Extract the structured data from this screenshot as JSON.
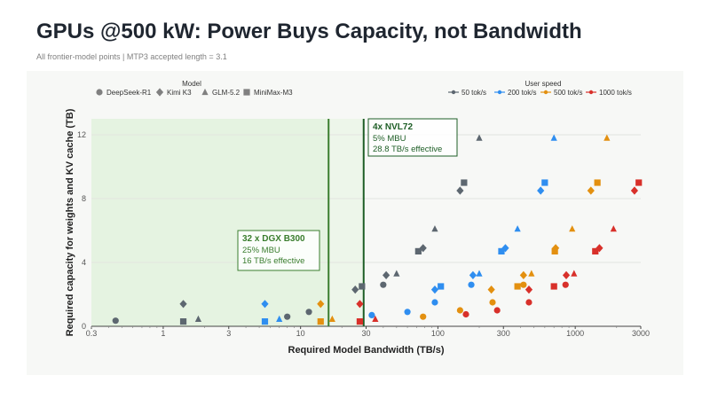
{
  "title": "GPUs @500 kW: Power Buys Capacity, not Bandwidth",
  "subtitle": "All frontier-model points | MTP3 accepted length = 3.1",
  "chart_data": {
    "type": "scatter",
    "x_scale": "log",
    "xlabel": "Required Model Bandwidth (TB/s)",
    "ylabel": "Required capacity for weights and KV cache (TB)",
    "xlim": [
      0.3,
      3000
    ],
    "ylim": [
      0,
      13
    ],
    "x_ticks": [
      0.3,
      1,
      3,
      10,
      30,
      100,
      300,
      1000,
      3000
    ],
    "x_tick_labels": [
      "0.3",
      "1",
      "3",
      "10",
      "30",
      "100",
      "300",
      "1000",
      "3000"
    ],
    "y_ticks": [
      0,
      4,
      8,
      12
    ],
    "y_tick_labels": [
      "0",
      "4",
      "8",
      "12"
    ],
    "grid": true,
    "legend_model_title": "Model",
    "legend_speed_title": "User speed",
    "models": [
      {
        "name": "DeepSeek-R1",
        "marker": "circle"
      },
      {
        "name": "Kimi K3",
        "marker": "diamond"
      },
      {
        "name": "GLM-5.2",
        "marker": "triangle"
      },
      {
        "name": "MiniMax-M3",
        "marker": "square"
      }
    ],
    "speeds": [
      {
        "name": "50 tok/s",
        "color": "#5d6770"
      },
      {
        "name": "200 tok/s",
        "color": "#2f8ef0"
      },
      {
        "name": "500 tok/s",
        "color": "#e39010"
      },
      {
        "name": "1000 tok/s",
        "color": "#d8302a"
      }
    ],
    "regions": [
      {
        "label": "32 x DGX B300",
        "lines": [
          "25% MBU",
          "16 TB/s effective"
        ],
        "x": 16,
        "fill": "#e5f3e1",
        "line": "#3a7d2e"
      },
      {
        "label": "4x NVL72",
        "lines": [
          "5% MBU",
          "28.8 TB/s effective"
        ],
        "x": 28.8,
        "fill": "#edf6ea",
        "line": "#1e5e26"
      }
    ],
    "series": [
      {
        "model": "DeepSeek-R1",
        "speed": "50 tok/s",
        "points": [
          [
            0.45,
            0.35
          ],
          [
            8,
            0.6
          ],
          [
            11.5,
            0.9
          ],
          [
            40,
            2.6
          ]
        ]
      },
      {
        "model": "DeepSeek-R1",
        "speed": "200 tok/s",
        "points": [
          [
            33,
            0.7
          ],
          [
            60,
            0.9
          ],
          [
            95,
            1.5
          ],
          [
            175,
            2.6
          ]
        ]
      },
      {
        "model": "DeepSeek-R1",
        "speed": "500 tok/s",
        "points": [
          [
            78,
            0.6
          ],
          [
            145,
            1.0
          ],
          [
            250,
            1.5
          ],
          [
            420,
            2.6
          ]
        ]
      },
      {
        "model": "DeepSeek-R1",
        "speed": "1000 tok/s",
        "points": [
          [
            160,
            0.75
          ],
          [
            270,
            1.0
          ],
          [
            460,
            1.5
          ],
          [
            850,
            2.6
          ]
        ]
      },
      {
        "model": "Kimi K3",
        "speed": "50 tok/s",
        "points": [
          [
            1.4,
            1.4
          ],
          [
            25,
            2.3
          ],
          [
            42,
            3.2
          ],
          [
            78,
            4.9
          ],
          [
            145,
            8.5
          ]
        ]
      },
      {
        "model": "Kimi K3",
        "speed": "200 tok/s",
        "points": [
          [
            5.5,
            1.4
          ],
          [
            95,
            2.3
          ],
          [
            180,
            3.2
          ],
          [
            310,
            4.9
          ],
          [
            560,
            8.5
          ]
        ]
      },
      {
        "model": "Kimi K3",
        "speed": "500 tok/s",
        "points": [
          [
            14,
            1.4
          ],
          [
            245,
            2.3
          ],
          [
            420,
            3.2
          ],
          [
            720,
            4.9
          ],
          [
            1300,
            8.5
          ]
        ]
      },
      {
        "model": "Kimi K3",
        "speed": "1000 tok/s",
        "points": [
          [
            27,
            1.4
          ],
          [
            460,
            2.3
          ],
          [
            860,
            3.2
          ],
          [
            1500,
            4.9
          ],
          [
            2700,
            8.5
          ]
        ]
      },
      {
        "model": "GLM-5.2",
        "speed": "50 tok/s",
        "points": [
          [
            1.8,
            0.45
          ],
          [
            50,
            3.3
          ],
          [
            95,
            6.1
          ],
          [
            200,
            11.8
          ]
        ]
      },
      {
        "model": "GLM-5.2",
        "speed": "200 tok/s",
        "points": [
          [
            7,
            0.45
          ],
          [
            200,
            3.3
          ],
          [
            380,
            6.1
          ],
          [
            700,
            11.8
          ]
        ]
      },
      {
        "model": "GLM-5.2",
        "speed": "500 tok/s",
        "points": [
          [
            17,
            0.45
          ],
          [
            480,
            3.3
          ],
          [
            950,
            6.1
          ],
          [
            1700,
            11.8
          ]
        ]
      },
      {
        "model": "GLM-5.2",
        "speed": "1000 tok/s",
        "points": [
          [
            35,
            0.45
          ],
          [
            980,
            3.3
          ],
          [
            1900,
            6.1
          ]
        ]
      },
      {
        "model": "MiniMax-M3",
        "speed": "50 tok/s",
        "points": [
          [
            1.4,
            0.3
          ],
          [
            28,
            2.5
          ],
          [
            72,
            4.7
          ],
          [
            155,
            9.0
          ]
        ]
      },
      {
        "model": "MiniMax-M3",
        "speed": "200 tok/s",
        "points": [
          [
            5.5,
            0.3
          ],
          [
            105,
            2.5
          ],
          [
            290,
            4.7
          ],
          [
            600,
            9.0
          ]
        ]
      },
      {
        "model": "MiniMax-M3",
        "speed": "500 tok/s",
        "points": [
          [
            14,
            0.3
          ],
          [
            380,
            2.5
          ],
          [
            710,
            4.7
          ],
          [
            1450,
            9.0
          ]
        ]
      },
      {
        "model": "MiniMax-M3",
        "speed": "1000 tok/s",
        "points": [
          [
            27,
            0.3
          ],
          [
            700,
            2.5
          ],
          [
            1400,
            4.7
          ],
          [
            2900,
            9.0
          ]
        ]
      }
    ]
  }
}
